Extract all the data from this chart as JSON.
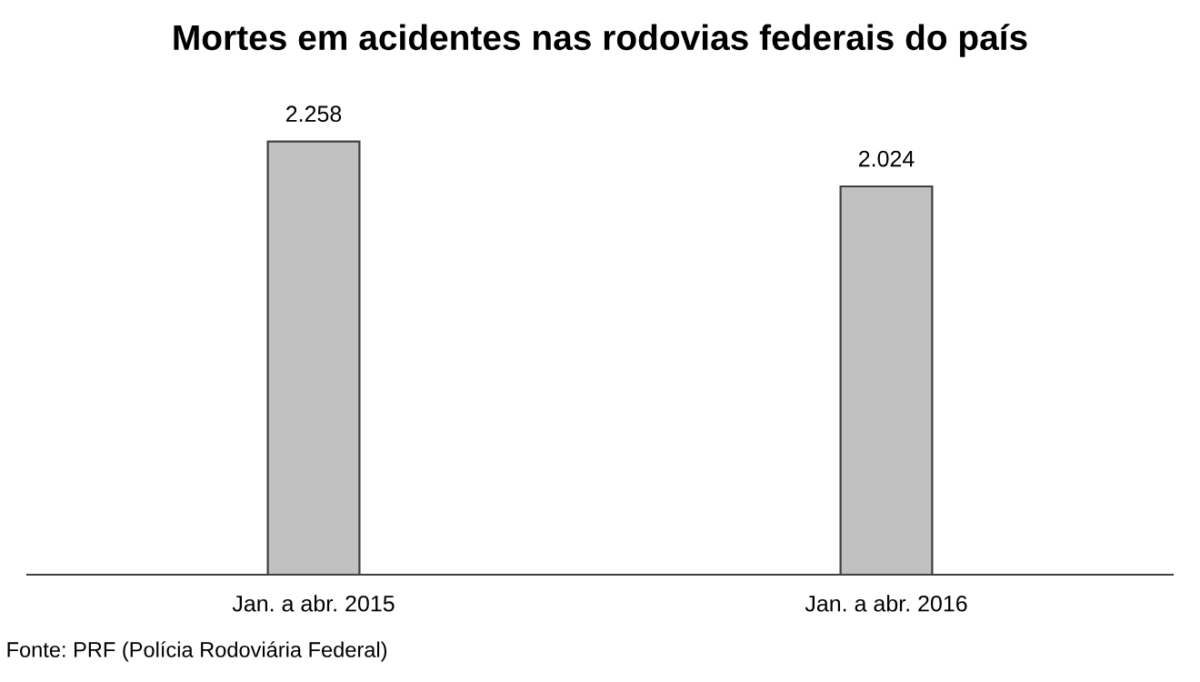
{
  "chart_data": {
    "type": "bar",
    "title": "Mortes em acidentes nas rodovias federais do país",
    "categories": [
      "Jan. a abr. 2015",
      "Jan. a abr. 2016"
    ],
    "values": [
      2258,
      2024
    ],
    "value_labels": [
      "2.258",
      "2.024"
    ],
    "color": "#c0c0c0",
    "tick_labels": "x",
    "grid": false,
    "annotations": [
      "Fonte: PRF (Polícia Rodoviária Federal)"
    ]
  }
}
